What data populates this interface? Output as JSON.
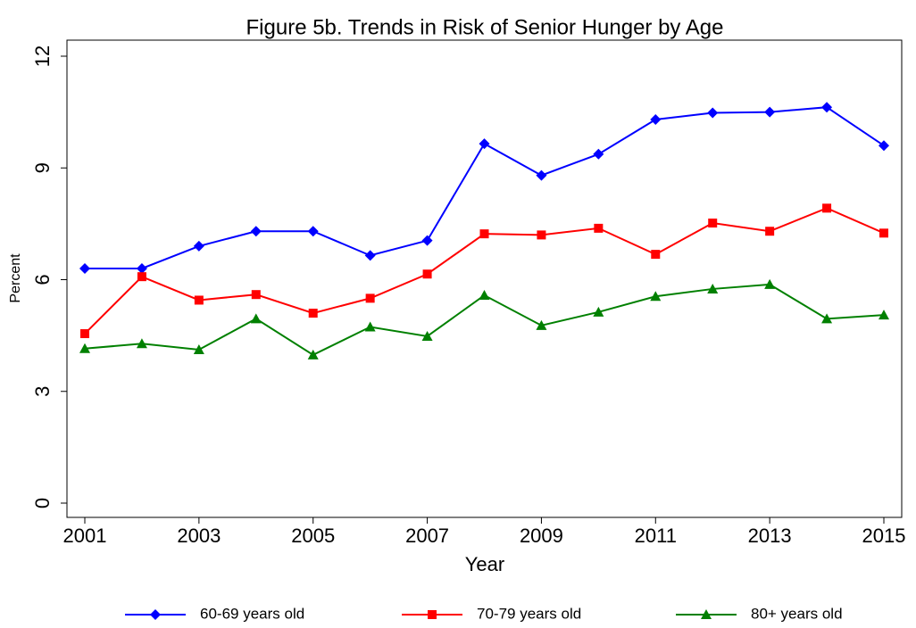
{
  "chart_data": {
    "type": "line",
    "title": "Figure 5b.  Trends in Risk of Senior Hunger by Age",
    "x_label": "Year",
    "y_label": "Percent",
    "x": [
      2001,
      2002,
      2003,
      2004,
      2005,
      2006,
      2007,
      2008,
      2009,
      2010,
      2011,
      2012,
      2013,
      2014,
      2015
    ],
    "xlim": [
      2001,
      2015
    ],
    "xticks": [
      2001,
      2003,
      2005,
      2007,
      2009,
      2011,
      2013,
      2015
    ],
    "ylim": [
      0,
      12
    ],
    "yticks": [
      0,
      3,
      6,
      9,
      12
    ],
    "grid": false,
    "legend": "bottom",
    "series": [
      {
        "name": "60-69 years old",
        "color": "#0000ff",
        "marker": "diamond",
        "values": [
          6.3,
          6.3,
          6.9,
          7.3,
          7.3,
          6.65,
          7.05,
          9.65,
          8.8,
          9.37,
          10.3,
          10.48,
          10.5,
          10.63,
          9.6
        ]
      },
      {
        "name": "70-79 years old",
        "color": "#ff0000",
        "marker": "square",
        "values": [
          4.55,
          6.08,
          5.45,
          5.6,
          5.1,
          5.5,
          6.15,
          7.23,
          7.2,
          7.38,
          6.68,
          7.52,
          7.3,
          7.92,
          7.25
        ]
      },
      {
        "name": "80+ years old",
        "color": "#008000",
        "marker": "triangle",
        "values": [
          4.15,
          4.28,
          4.12,
          4.95,
          3.98,
          4.73,
          4.48,
          5.58,
          4.77,
          5.13,
          5.55,
          5.75,
          5.87,
          4.95,
          5.05
        ]
      }
    ]
  }
}
